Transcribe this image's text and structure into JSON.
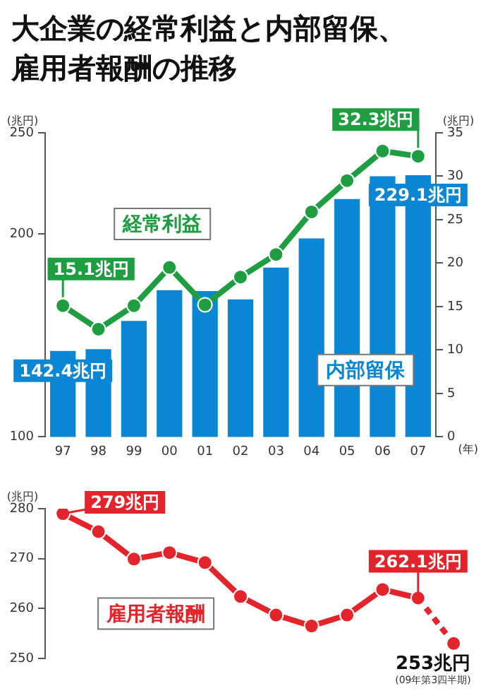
{
  "chart_data": [
    {
      "type": "bar",
      "title": "大企業の経常利益と内部留保、雇用者報酬の推移",
      "categories": [
        "97",
        "98",
        "99",
        "00",
        "01",
        "02",
        "03",
        "04",
        "05",
        "06",
        "07"
      ],
      "xlabel": "(年)",
      "ylabel": "(兆円)",
      "y2label": "(兆円)",
      "ylim": [
        100,
        250
      ],
      "yticks": [
        100,
        200,
        250
      ],
      "y2lim": [
        0,
        35
      ],
      "y2ticks": [
        0,
        5,
        10,
        15,
        20,
        25,
        30,
        35
      ],
      "legend": false,
      "grid": false,
      "marker": "circle",
      "series": [
        {
          "name": "内部留保",
          "type": "bar",
          "color": "#0a87d4",
          "values": [
            142.4,
            143.3,
            157.2,
            172.4,
            171.9,
            167.8,
            183.5,
            197.9,
            217.3,
            228.6,
            229.1
          ]
        },
        {
          "name": "経常利益",
          "type": "line",
          "axis": "y2",
          "color": "#1e9e40",
          "values": [
            15.1,
            12.4,
            15.1,
            19.5,
            15.2,
            18.4,
            21.0,
            25.9,
            29.5,
            32.9,
            32.3
          ]
        }
      ],
      "annotations": [
        "15.1兆円",
        {
          "text": "142.4兆円",
          "x": "97",
          "y": 142.4
        },
        "32.3兆円",
        {
          "text": "229.1兆円",
          "x": "07",
          "y": 229.1
        }
      ]
    },
    {
      "type": "line",
      "categories": [
        "97",
        "98",
        "99",
        "00",
        "01",
        "02",
        "03",
        "04",
        "05",
        "06",
        "07",
        null
      ],
      "tick_labels": "y",
      "ylabel": "(兆円)",
      "ylim": [
        250,
        280
      ],
      "yticks": [
        250,
        260,
        270,
        280
      ],
      "legend": "bottom left",
      "grid": false,
      "marker": "circle",
      "series": [
        {
          "name": "雇用者報酬",
          "color": "#e3242b",
          "values": [
            279,
            275.4,
            269.9,
            271.2,
            269.2,
            262.4,
            258.7,
            256.5,
            258.7,
            263.8,
            262.1,
            null
          ]
        },
        {
          "color": "#e3242b",
          "line_style": "dashed",
          "values": [
            null,
            null,
            null,
            null,
            null,
            null,
            null,
            null,
            null,
            null,
            262.1,
            253
          ]
        }
      ],
      "annotations": [
        {
          "text": "279兆円",
          "x": "97",
          "y": 279
        },
        {
          "text": "262.1兆円",
          "x": "07",
          "y": 262.1
        },
        "253兆円",
        "(09年第3四半期)"
      ]
    }
  ]
}
